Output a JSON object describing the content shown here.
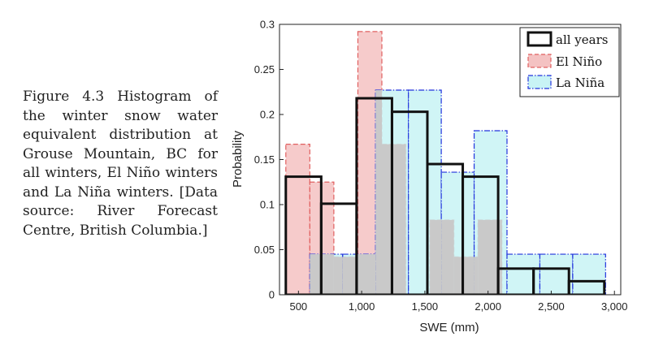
{
  "caption": "Figure 4.3 Histogram of the winter snow water equivalent distribution at Grouse Mountain, BC for all winters, El Niño winters and La Niña winters. [Data source: River Forecast Centre, British Columbia.]",
  "colors": {
    "all_years": "#111111",
    "el_nino_fill": "#f4c2c2",
    "el_nino_edge": "#e06060",
    "la_nina_fill": "#c8f3f5",
    "la_nina_edge": "#2233dd",
    "overlap_fill": "#c9c9c9"
  },
  "chart_data": {
    "type": "histogram",
    "xlabel": "SWE (mm)",
    "ylabel": "Probability",
    "xlim": [
      350,
      3050
    ],
    "ylim": [
      0,
      0.3
    ],
    "xticks": [
      500,
      1000,
      1500,
      2000,
      2500,
      3000
    ],
    "xtick_labels": [
      "500",
      "1,000",
      "1,500",
      "2,000",
      "2,500",
      "3,000"
    ],
    "yticks": [
      0,
      0.05,
      0.1,
      0.15,
      0.2,
      0.25,
      0.3
    ],
    "ytick_labels": [
      "0",
      "0.05",
      "0.1",
      "0.15",
      "0.2",
      "0.25",
      "0.3"
    ],
    "legend_position": "top-right",
    "series": [
      {
        "name": "El Niño",
        "style": "filled-dashed",
        "edges": [
          400,
          590,
          780,
          970,
          1160,
          1350,
          1540,
          1730,
          1920,
          2110
        ],
        "values": [
          0.167,
          0.125,
          0.042,
          0.292,
          0.167,
          0,
          0.083,
          0.042,
          0.083
        ]
      },
      {
        "name": "La Niña",
        "style": "filled-dashdot",
        "edges": [
          590,
          850,
          1110,
          1370,
          1630,
          1890,
          2150,
          2410,
          2670,
          2930
        ],
        "values": [
          0.045,
          0.045,
          0.227,
          0.227,
          0.136,
          0.182,
          0.045,
          0.045,
          0.045
        ]
      },
      {
        "name": "all years",
        "style": "step-outline",
        "edges": [
          400,
          680,
          960,
          1240,
          1520,
          1800,
          2080,
          2360,
          2640,
          2920
        ],
        "values": [
          0.131,
          0.101,
          0.218,
          0.203,
          0.145,
          0.131,
          0.029,
          0.029,
          0.015
        ]
      }
    ]
  }
}
